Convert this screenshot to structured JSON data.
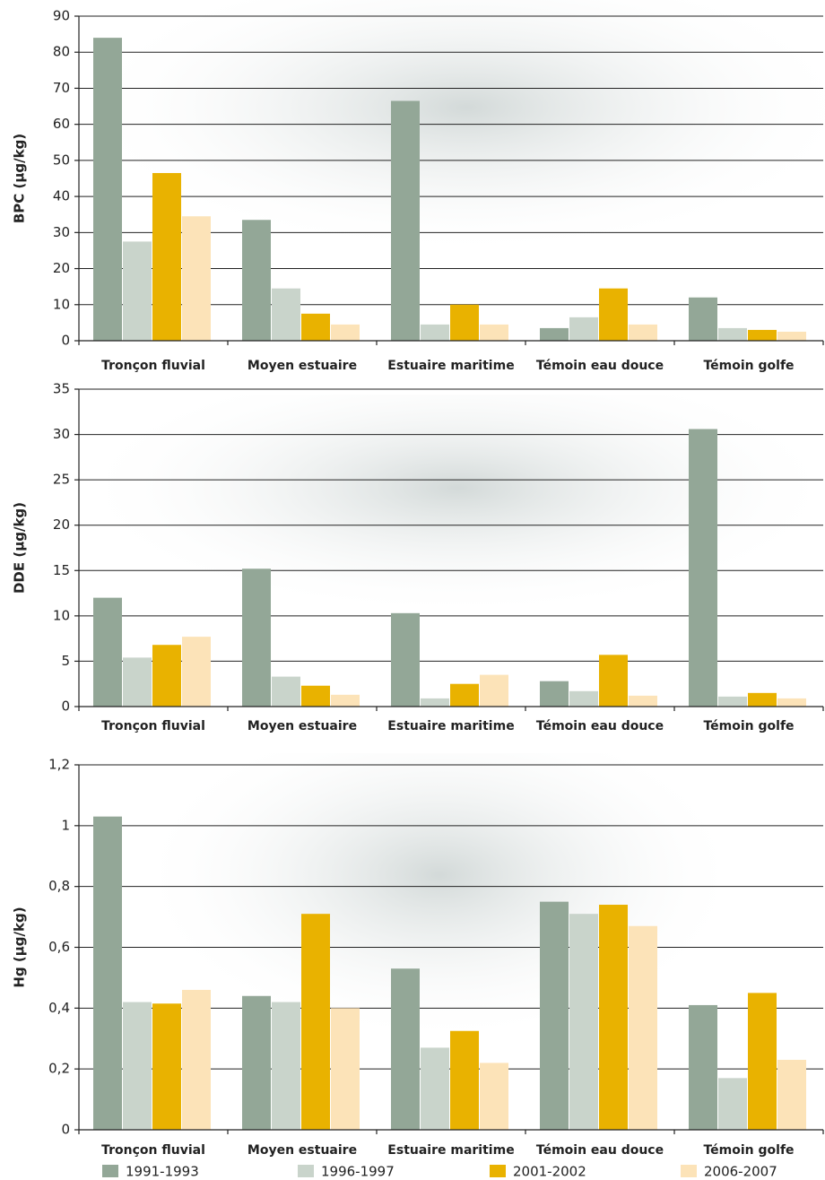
{
  "chart_data": [
    {
      "type": "bar",
      "ylabel": "BPC (µg/kg)",
      "categories": [
        "Tronçon fluvial",
        "Moyen estuaire",
        "Estuaire maritime",
        "Témoin eau douce",
        "Témoin golfe"
      ],
      "series": [
        {
          "name": "1991-1993",
          "color": "#93a797",
          "values": [
            84,
            33.5,
            66.5,
            3.5,
            12
          ]
        },
        {
          "name": "1996-1997",
          "color": "#c9d4cb",
          "values": [
            27.5,
            14.5,
            4.5,
            6.5,
            3.5
          ]
        },
        {
          "name": "2001-2002",
          "color": "#e9b200",
          "values": [
            46.5,
            7.5,
            10,
            14.5,
            3
          ]
        },
        {
          "name": "2006-2007",
          "color": "#fce3b8",
          "values": [
            34.5,
            4.5,
            4.5,
            4.5,
            2.5
          ]
        }
      ],
      "ylim": [
        0,
        90
      ],
      "yticks": [
        0,
        10,
        20,
        30,
        40,
        50,
        60,
        70,
        80,
        90
      ],
      "grid": true
    },
    {
      "type": "bar",
      "ylabel": "DDE (µg/kg)",
      "categories": [
        "Tronçon fluvial",
        "Moyen estuaire",
        "Estuaire maritime",
        "Témoin eau douce",
        "Témoin golfe"
      ],
      "series": [
        {
          "color": "#93a797",
          "values": [
            12,
            15.2,
            10.3,
            2.8,
            30.6
          ]
        },
        {
          "color": "#c9d4cb",
          "values": [
            5.4,
            3.3,
            0.9,
            1.7,
            1.1
          ]
        },
        {
          "color": "#e9b200",
          "values": [
            6.8,
            2.3,
            2.5,
            5.7,
            1.5
          ]
        },
        {
          "color": "#fce3b8",
          "values": [
            7.7,
            1.3,
            3.5,
            1.2,
            0.9
          ]
        }
      ],
      "ylim": [
        0,
        35
      ],
      "yticks": [
        0,
        5,
        10,
        15,
        20,
        25,
        30,
        35
      ],
      "grid": true
    },
    {
      "type": "bar",
      "ylabel": "Hg (µg/kg)",
      "categories": [
        "Tronçon fluvial",
        "Moyen estuaire",
        "Estuaire maritime",
        "Témoin eau douce",
        "Témoin golfe"
      ],
      "series": [
        {
          "color": "#93a797",
          "values": [
            1.03,
            0.44,
            0.53,
            0.75,
            0.41
          ]
        },
        {
          "color": "#c9d4cb",
          "values": [
            0.42,
            0.42,
            0.27,
            0.71,
            0.17
          ]
        },
        {
          "color": "#e9b200",
          "values": [
            0.415,
            0.71,
            0.325,
            0.74,
            0.45
          ]
        },
        {
          "color": "#fce3b8",
          "values": [
            0.46,
            0.4,
            0.22,
            0.67,
            0.23
          ]
        }
      ],
      "ylim": [
        0,
        1.2
      ],
      "yticks": [
        0,
        {
          "value": 0.2,
          "label": "0,2"
        },
        {
          "value": 0.4,
          "label": "0,4"
        },
        {
          "value": 0.6,
          "label": "0,6"
        },
        {
          "value": 0.8,
          "label": "0,8"
        },
        1,
        {
          "value": 1.2,
          "label": "1,2"
        }
      ],
      "grid": true
    }
  ]
}
